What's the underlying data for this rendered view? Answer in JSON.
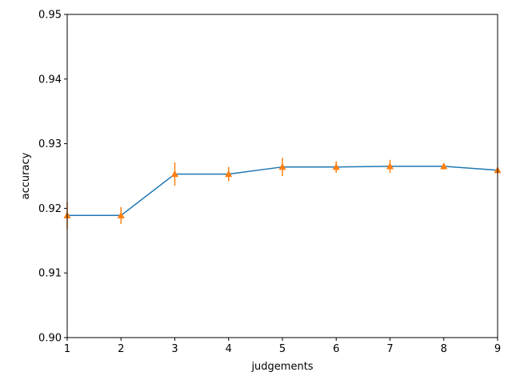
{
  "chart_data": {
    "type": "line",
    "title": "",
    "xlabel": "judgements",
    "ylabel": "accuracy",
    "xlim": [
      1,
      9
    ],
    "ylim": [
      0.9,
      0.95
    ],
    "xticks": [
      "1",
      "2",
      "3",
      "4",
      "5",
      "6",
      "7",
      "8",
      "9"
    ],
    "yticks": [
      "0.90",
      "0.91",
      "0.92",
      "0.93",
      "0.94",
      "0.95"
    ],
    "grid": false,
    "series": [
      {
        "x": [
          1,
          2,
          3,
          4,
          5,
          6,
          7,
          8,
          9
        ],
        "y": [
          0.9189,
          0.9189,
          0.9253,
          0.9253,
          0.9264,
          0.9264,
          0.9265,
          0.9265,
          0.9259
        ],
        "color": "#1f77b4",
        "marker": "none"
      },
      {
        "x": [
          1,
          2,
          3,
          4,
          5,
          6,
          7,
          8,
          9
        ],
        "y": [
          0.9189,
          0.9189,
          0.9253,
          0.9253,
          0.9264,
          0.9264,
          0.9265,
          0.9265,
          0.9259
        ],
        "err": [
          0.0021,
          0.0013,
          0.0018,
          0.0011,
          0.0014,
          0.0009,
          0.001,
          0.0005,
          0.0004
        ],
        "color": "#ff7f0e",
        "marker": "triangle-up"
      }
    ]
  }
}
